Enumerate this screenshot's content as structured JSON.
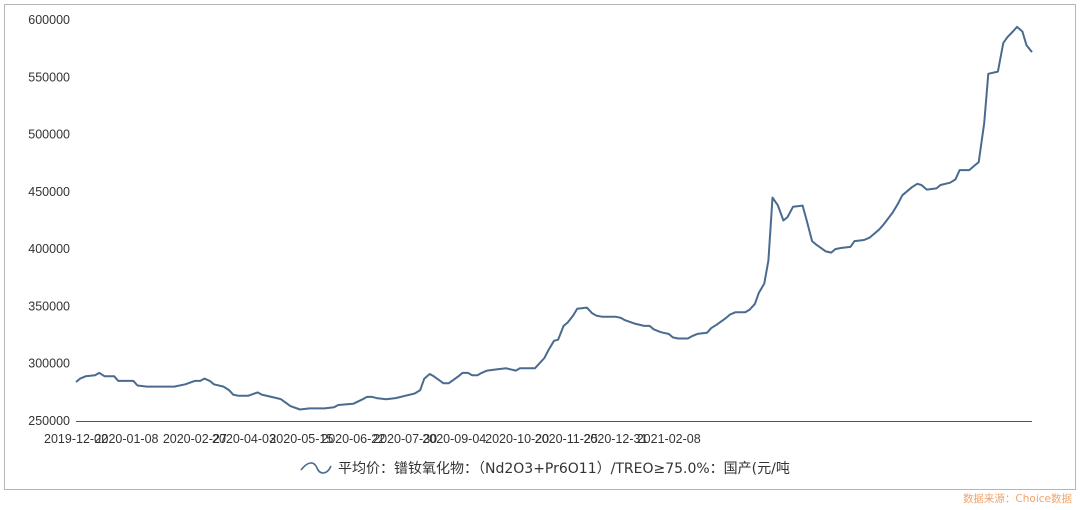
{
  "chart_data": {
    "type": "line",
    "title": "",
    "xlabel": "",
    "ylabel": "",
    "ylim": [
      250000,
      600000
    ],
    "yticks": [
      "250000",
      "300000",
      "350000",
      "400000",
      "450000",
      "500000",
      "550000",
      "600000"
    ],
    "xticks": [
      "2019-12-02",
      "2020-01-08",
      "2020-02-27",
      "2020-04-03",
      "2020-05-15",
      "2020-06-22",
      "2020-07-30",
      "2020-09-04",
      "2020-10-20",
      "2020-11-25",
      "2020-12-31",
      "2021-02-08"
    ],
    "grid": false,
    "legend_position": "bottom",
    "series": [
      {
        "name": "平均价：镨钕氧化物：（Nd2O3+Pr6O11）/TREO≥75.0%：国产(元/吨",
        "color": "#4a6b8f",
        "points": [
          [
            "2019-12-02",
            284000
          ],
          [
            "2019-12-05",
            287000
          ],
          [
            "2019-12-09",
            289000
          ],
          [
            "2019-12-16",
            290000
          ],
          [
            "2019-12-19",
            292000
          ],
          [
            "2019-12-23",
            289000
          ],
          [
            "2019-12-30",
            289000
          ],
          [
            "2020-01-02",
            285000
          ],
          [
            "2020-01-13",
            285000
          ],
          [
            "2020-01-16",
            281000
          ],
          [
            "2020-01-23",
            280000
          ],
          [
            "2020-02-12",
            280000
          ],
          [
            "2020-02-20",
            282000
          ],
          [
            "2020-02-27",
            285000
          ],
          [
            "2020-03-02",
            285000
          ],
          [
            "2020-03-05",
            287000
          ],
          [
            "2020-03-09",
            285000
          ],
          [
            "2020-03-12",
            282000
          ],
          [
            "2020-03-19",
            280000
          ],
          [
            "2020-03-23",
            277000
          ],
          [
            "2020-03-26",
            273000
          ],
          [
            "2020-03-30",
            272000
          ],
          [
            "2020-04-06",
            272000
          ],
          [
            "2020-04-13",
            275000
          ],
          [
            "2020-04-16",
            273000
          ],
          [
            "2020-04-27",
            270000
          ],
          [
            "2020-04-30",
            269000
          ],
          [
            "2020-05-07",
            263000
          ],
          [
            "2020-05-14",
            260000
          ],
          [
            "2020-05-21",
            261000
          ],
          [
            "2020-06-01",
            261000
          ],
          [
            "2020-06-08",
            262000
          ],
          [
            "2020-06-11",
            264000
          ],
          [
            "2020-06-22",
            265000
          ],
          [
            "2020-06-29",
            269000
          ],
          [
            "2020-07-02",
            271000
          ],
          [
            "2020-07-06",
            271000
          ],
          [
            "2020-07-09",
            270000
          ],
          [
            "2020-07-16",
            269000
          ],
          [
            "2020-07-23",
            270000
          ],
          [
            "2020-07-30",
            272000
          ],
          [
            "2020-08-06",
            274000
          ],
          [
            "2020-08-10",
            277000
          ],
          [
            "2020-08-13",
            287000
          ],
          [
            "2020-08-17",
            291000
          ],
          [
            "2020-08-20",
            289000
          ],
          [
            "2020-08-27",
            283000
          ],
          [
            "2020-08-31",
            283000
          ],
          [
            "2020-09-07",
            289000
          ],
          [
            "2020-09-10",
            292000
          ],
          [
            "2020-09-14",
            292000
          ],
          [
            "2020-09-17",
            290000
          ],
          [
            "2020-09-21",
            290000
          ],
          [
            "2020-09-24",
            292000
          ],
          [
            "2020-09-28",
            294000
          ],
          [
            "2020-10-05",
            295000
          ],
          [
            "2020-10-12",
            296000
          ],
          [
            "2020-10-19",
            294000
          ],
          [
            "2020-10-22",
            296000
          ],
          [
            "2020-11-02",
            296000
          ],
          [
            "2020-11-09",
            305000
          ],
          [
            "2020-11-12",
            312000
          ],
          [
            "2020-11-16",
            320000
          ],
          [
            "2020-11-19",
            321000
          ],
          [
            "2020-11-23",
            333000
          ],
          [
            "2020-11-26",
            336000
          ],
          [
            "2020-11-30",
            342000
          ],
          [
            "2020-12-03",
            348000
          ],
          [
            "2020-12-10",
            349000
          ],
          [
            "2020-12-14",
            344000
          ],
          [
            "2020-12-17",
            342000
          ],
          [
            "2020-12-21",
            341000
          ],
          [
            "2020-12-31",
            341000
          ],
          [
            "2021-01-04",
            340000
          ],
          [
            "2021-01-07",
            338000
          ],
          [
            "2021-01-14",
            335000
          ],
          [
            "2021-01-21",
            333000
          ],
          [
            "2021-01-25",
            333000
          ],
          [
            "2021-01-28",
            330000
          ],
          [
            "2021-02-01",
            328000
          ],
          [
            "2021-02-04",
            327000
          ],
          [
            "2021-02-08",
            326000
          ],
          [
            "2021-02-11",
            323000
          ],
          [
            "2021-02-15",
            322000
          ],
          [
            "2021-02-22",
            322000
          ],
          [
            "2021-02-25",
            324000
          ],
          [
            "2021-03-01",
            326000
          ],
          [
            "2021-03-08",
            327000
          ],
          [
            "2021-03-11",
            331000
          ],
          [
            "2021-03-15",
            334000
          ],
          [
            "2021-03-22",
            340000
          ],
          [
            "2021-03-25",
            343000
          ],
          [
            "2021-03-29",
            345000
          ],
          [
            "2021-04-05",
            345000
          ],
          [
            "2021-04-08",
            347000
          ],
          [
            "2021-04-12",
            352000
          ],
          [
            "2021-04-15",
            362000
          ],
          [
            "2021-04-19",
            370000
          ],
          [
            "2021-04-22",
            390000
          ],
          [
            "2021-04-25",
            445000
          ],
          [
            "2021-04-29",
            438000
          ],
          [
            "2021-05-03",
            425000
          ],
          [
            "2021-05-06",
            428000
          ],
          [
            "2021-05-10",
            437000
          ],
          [
            "2021-05-17",
            438000
          ],
          [
            "2021-05-20",
            425000
          ],
          [
            "2021-05-24",
            407000
          ],
          [
            "2021-05-27",
            404000
          ],
          [
            "2021-06-03",
            398000
          ],
          [
            "2021-06-07",
            397000
          ],
          [
            "2021-06-10",
            400000
          ],
          [
            "2021-06-14",
            401000
          ],
          [
            "2021-06-21",
            402000
          ],
          [
            "2021-06-24",
            407000
          ],
          [
            "2021-07-01",
            408000
          ],
          [
            "2021-07-05",
            410000
          ],
          [
            "2021-07-08",
            413000
          ],
          [
            "2021-07-12",
            417000
          ],
          [
            "2021-07-15",
            421000
          ],
          [
            "2021-07-22",
            432000
          ],
          [
            "2021-07-26",
            440000
          ],
          [
            "2021-07-29",
            447000
          ],
          [
            "2021-08-05",
            454000
          ],
          [
            "2021-08-09",
            457000
          ],
          [
            "2021-08-12",
            456000
          ],
          [
            "2021-08-16",
            452000
          ],
          [
            "2021-08-23",
            453000
          ],
          [
            "2021-08-26",
            456000
          ],
          [
            "2021-09-02",
            458000
          ],
          [
            "2021-09-06",
            461000
          ],
          [
            "2021-09-09",
            469000
          ],
          [
            "2021-09-16",
            469000
          ],
          [
            "2021-09-20",
            473000
          ],
          [
            "2021-09-23",
            476000
          ],
          [
            "2021-09-27",
            510000
          ],
          [
            "2021-09-30",
            553000
          ],
          [
            "2021-10-07",
            555000
          ],
          [
            "2021-10-11",
            580000
          ],
          [
            "2021-10-14",
            585000
          ],
          [
            "2021-10-18",
            590000
          ],
          [
            "2021-10-21",
            594000
          ],
          [
            "2021-10-25",
            590000
          ],
          [
            "2021-10-28",
            578000
          ],
          [
            "2021-11-01",
            572000
          ]
        ]
      }
    ]
  },
  "legend": {
    "label": "平均价：镨钕氧化物：（Nd2O3+Pr6O11）/TREO≥75.0%：国产(元/吨"
  },
  "source": "数据来源：Choice数据"
}
